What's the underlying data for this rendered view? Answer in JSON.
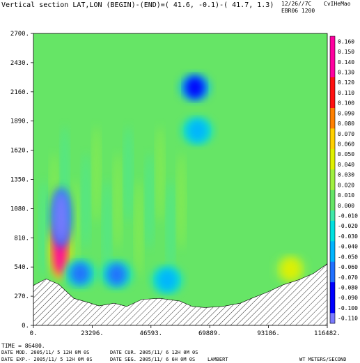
{
  "header": {
    "title": "Vertical section LAT,LON (BEGIN)-(END)=( 41.6, -0.1)-( 41.7,  1.3)",
    "date_code": "12/26//7C",
    "user_code": "CvIHeMao",
    "run_code": "EBR06 1200"
  },
  "footer": {
    "time": "TIME =   86400.",
    "date_mod": "DATE MOD. 2005/11/ 5  12H 0M 0S",
    "date_cur": "DATE CUR. 2005/11/ 6  12H 0M 0S",
    "date_exp": "DATE EXP.- 2005/11/ 5  12H 0M 0S",
    "date_seg": "DATE SEG. 2005/11/ 6   6H 0M 0S",
    "projection": "LAMBERT",
    "units": "WT METERS/SECOND"
  },
  "chart_data": {
    "type": "heatmap",
    "field": "vertical velocity",
    "x_ticks": [
      "0.",
      "23296.",
      "46593.",
      "69889.",
      "93186.",
      "116482."
    ],
    "y_ticks": [
      "0.",
      "270.",
      "540.",
      "810.",
      "1080.",
      "1350.",
      "1620.",
      "1890.",
      "2160.",
      "2430.",
      "2700."
    ],
    "xlim": [
      0,
      116482
    ],
    "ylim": [
      0,
      2700
    ],
    "colorbar_labels": [
      "0.160",
      "0.150",
      "0.140",
      "0.130",
      "0.120",
      "0.110",
      "0.100",
      "0.090",
      "0.080",
      "0.070",
      "0.060",
      "0.050",
      "0.040",
      "0.030",
      "0.020",
      "0.010",
      "0.000",
      "-0.010",
      "-0.020",
      "-0.030",
      "-0.040",
      "-0.050",
      "-0.060",
      "-0.070",
      "-0.080",
      "-0.090",
      "-0.100",
      "-0.110"
    ],
    "colorbar_range": [
      -0.12,
      0.17
    ],
    "terrain": [
      [
        0,
        370
      ],
      [
        5000,
        430
      ],
      [
        10000,
        380
      ],
      [
        16000,
        250
      ],
      [
        22000,
        210
      ],
      [
        26000,
        180
      ],
      [
        32000,
        205
      ],
      [
        37000,
        175
      ],
      [
        43000,
        240
      ],
      [
        50000,
        250
      ],
      [
        58000,
        225
      ],
      [
        63000,
        175
      ],
      [
        68000,
        165
      ],
      [
        75000,
        175
      ],
      [
        82000,
        205
      ],
      [
        87000,
        255
      ],
      [
        93000,
        310
      ],
      [
        99000,
        375
      ],
      [
        105000,
        420
      ],
      [
        111000,
        480
      ],
      [
        116482,
        570
      ]
    ],
    "features": [
      {
        "x": 10500,
        "y": 700,
        "w": 0.14,
        "kind": "updraft"
      },
      {
        "x": 11000,
        "y": 1000,
        "w": -0.1,
        "kind": "downdraft"
      },
      {
        "x": 18500,
        "y": 480,
        "w": -0.05
      },
      {
        "x": 33000,
        "y": 470,
        "w": -0.05
      },
      {
        "x": 53000,
        "y": 420,
        "w": -0.03
      },
      {
        "x": 64000,
        "y": 2200,
        "w": -0.07
      },
      {
        "x": 65000,
        "y": 1800,
        "w": -0.03
      },
      {
        "x": 102000,
        "y": 520,
        "w": 0.05
      }
    ]
  }
}
